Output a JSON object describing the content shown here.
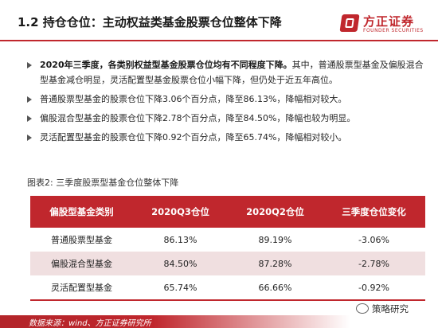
{
  "header": {
    "title": "1.2 持仓仓位：主动权益类基金股票仓位整体下降",
    "logo_cn": "方正证券",
    "logo_en": "FOUNDER SECURITIES",
    "accent": "#c0272d"
  },
  "bullets": [
    {
      "strong": "2020年三季度，各类别权益型基金股票仓位均有不同程度下降。",
      "text": "其中，普通股票型基金及偏股混合型基金减仓明显，灵活配置型基金股票仓位小幅下降，但仍处于近五年高位。"
    },
    {
      "strong": "",
      "text": "普通股票型基金的股票仓位下降3.06个百分点，降至86.13%，降幅相对较大。"
    },
    {
      "strong": "",
      "text": "偏股混合型基金的股票仓位下降2.78个百分点，降至84.50%，降幅也较为明显。"
    },
    {
      "strong": "",
      "text": "灵活配置型基金的股票仓位下降0.92个百分点，降至65.74%，降幅相对较小。"
    }
  ],
  "figure": {
    "label": "图表2:  三季度股票型基金仓位整体下降"
  },
  "table": {
    "headers": [
      "偏股型基金类别",
      "2020Q3仓位",
      "2020Q2仓位",
      "三季度仓位变化"
    ],
    "rows": [
      [
        "普通股票型基金",
        "86.13%",
        "89.19%",
        "-3.06%"
      ],
      [
        "偏股混合型基金",
        "84.50%",
        "87.28%",
        "-2.78%"
      ],
      [
        "灵活配置型基金",
        "65.74%",
        "66.66%",
        "-0.92%"
      ]
    ]
  },
  "footer": {
    "source": "数据来源：wind、方正证券研究所",
    "watermark": "策略研究"
  }
}
